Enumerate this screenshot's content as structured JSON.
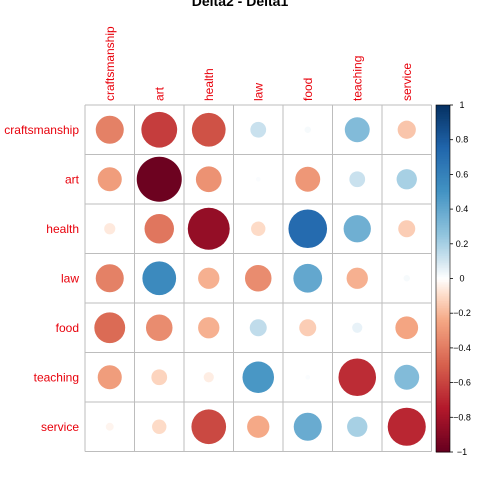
{
  "chart_data": {
    "type": "heatmap",
    "title": "Delta2 - Delta1",
    "variables": [
      "craftsmanship",
      "art",
      "health",
      "law",
      "food",
      "teaching",
      "service"
    ],
    "values": [
      [
        -0.38,
        -0.62,
        -0.55,
        0.12,
        0.02,
        0.3,
        -0.16
      ],
      [
        -0.28,
        -0.98,
        -0.32,
        0.01,
        -0.3,
        0.12,
        0.2
      ],
      [
        -0.06,
        -0.42,
        -0.85,
        -0.1,
        0.72,
        0.36,
        -0.14
      ],
      [
        -0.38,
        0.55,
        -0.22,
        -0.34,
        0.4,
        -0.22,
        0.02
      ],
      [
        -0.46,
        -0.34,
        -0.22,
        0.14,
        -0.14,
        0.05,
        -0.25
      ],
      [
        -0.28,
        -0.12,
        -0.05,
        0.48,
        0.01,
        -0.68,
        0.3
      ],
      [
        -0.03,
        -0.1,
        -0.58,
        -0.24,
        0.38,
        0.2,
        -0.7
      ]
    ],
    "colorbar": {
      "range": [
        -1,
        1
      ],
      "ticks": [
        "1",
        "0.8",
        "0.6",
        "0.4",
        "0.2",
        "0",
        "−0.2",
        "−0.4",
        "−0.6",
        "−0.8",
        "−1"
      ]
    },
    "colors": {
      "negative_end": "#67001f",
      "positive_end": "#053061",
      "label": "#e8000b",
      "grid": "#bdbdbd"
    }
  }
}
